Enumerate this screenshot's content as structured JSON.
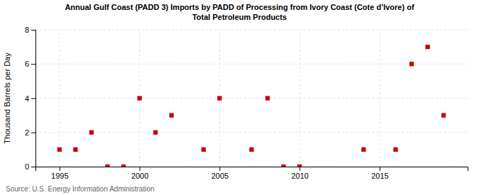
{
  "chart_data": {
    "type": "scatter",
    "title": "Annual Gulf Coast (PADD 3) Imports by PADD of Processing from Ivory Coast (Cote d’Ivore) of\nTotal Petroleum Products",
    "y_label": "Thousand Barrels per Day",
    "annotations": [
      "Source: U.S. Energy Information Administration"
    ],
    "x": [
      1995,
      1996,
      1997,
      1998,
      1999,
      2000,
      2001,
      2002,
      2004,
      2005,
      2007,
      2008,
      2009,
      2010,
      2014,
      2016,
      2017,
      2018,
      2019
    ],
    "values": [
      1,
      1,
      2,
      0,
      0,
      4,
      2,
      3,
      1,
      4,
      1,
      4,
      0,
      0,
      1,
      1,
      6,
      7,
      3
    ],
    "color": "#cc0000",
    "marker": "square",
    "xlim": [
      1993.5,
      2020.5
    ],
    "ylim": [
      0,
      8
    ],
    "xticks": [
      1995,
      2000,
      2005,
      2010,
      2015
    ],
    "yticks": [
      0,
      2,
      4,
      6,
      8
    ],
    "grid": true
  }
}
